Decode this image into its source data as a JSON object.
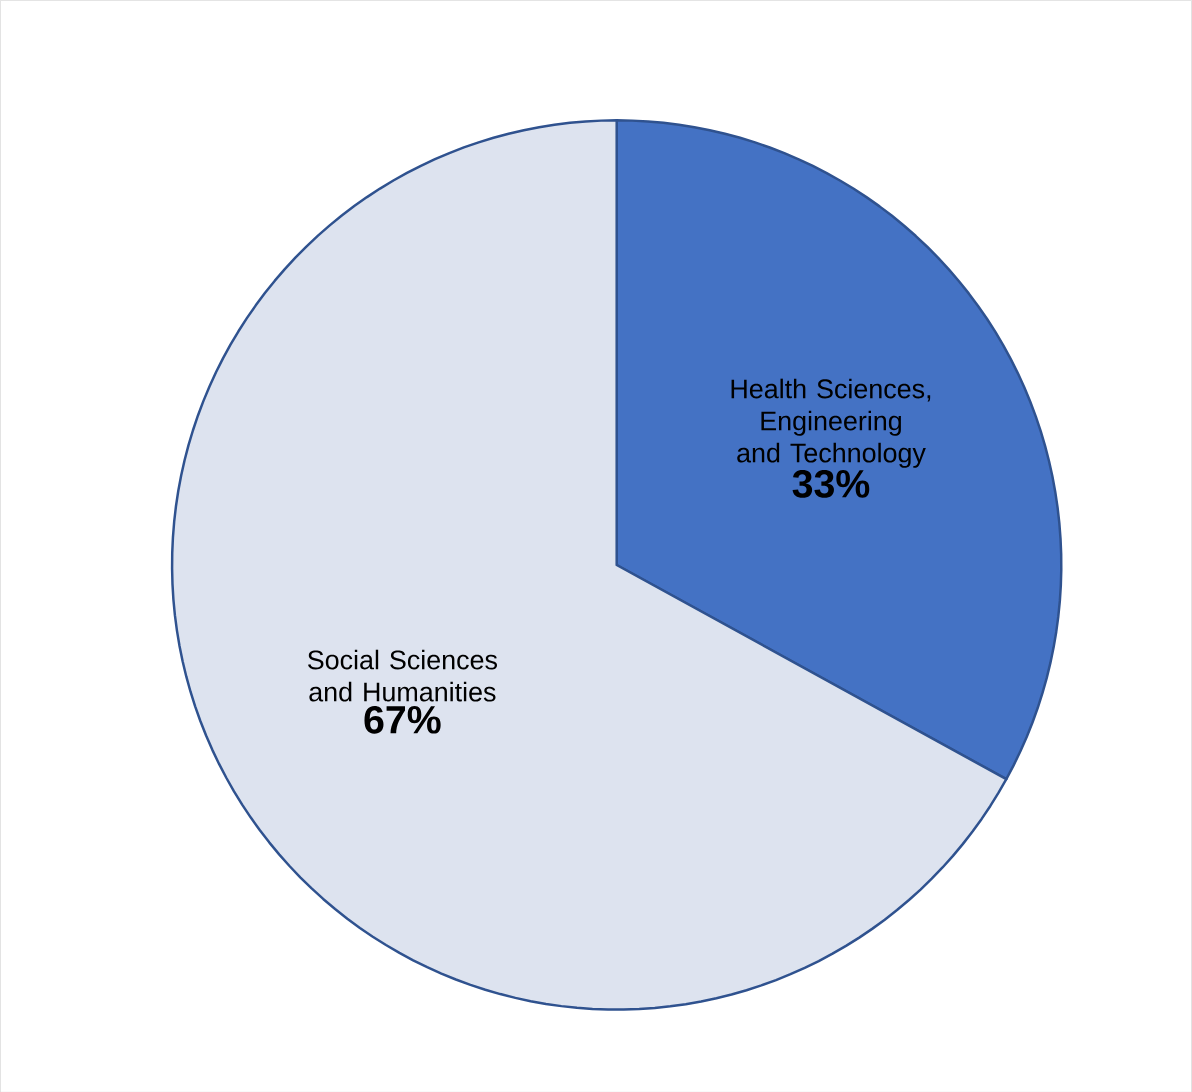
{
  "chart_data": {
    "type": "pie",
    "categories": [
      "Health Sciences, Engineering and Technology",
      "Social Sciences and Humanities"
    ],
    "values": [
      33,
      67
    ],
    "value_labels": [
      "33%",
      "67%"
    ],
    "colors": [
      "#4472c4",
      "#dde3ef"
    ]
  }
}
